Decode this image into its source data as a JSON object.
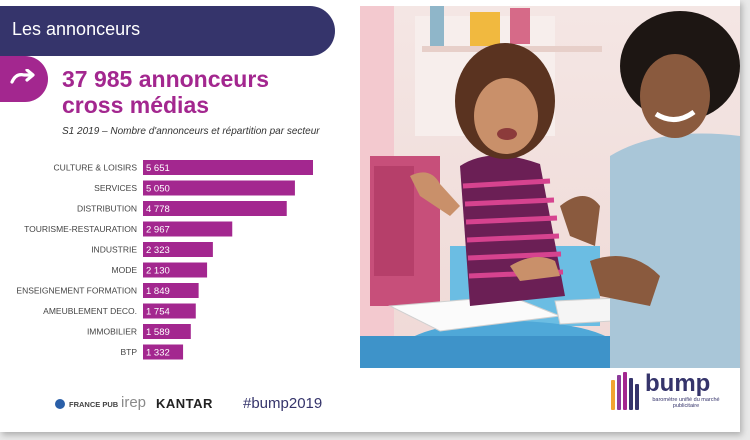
{
  "header": {
    "title": "Les annonceurs"
  },
  "headline": {
    "line1": "37 985 annonceurs",
    "line2": "cross médias"
  },
  "subtitle": "S1 2019 – Nombre d'annonceurs et répartition par secteur",
  "chart_data": {
    "type": "bar",
    "orientation": "horizontal",
    "categories": [
      "CULTURE & LOISIRS",
      "SERVICES",
      "DISTRIBUTION",
      "TOURISME-RESTAURATION",
      "INDUSTRIE",
      "MODE",
      "ENSEIGNEMENT FORMATION",
      "AMEUBLEMENT DECO.",
      "IMMOBILIER",
      "BTP"
    ],
    "values": [
      5651,
      5050,
      4778,
      2967,
      2323,
      2130,
      1849,
      1754,
      1589,
      1332
    ],
    "value_labels": [
      "5 651",
      "5 050",
      "4 778",
      "2 967",
      "2 323",
      "2 130",
      "1 849",
      "1 754",
      "1 589",
      "1 332"
    ],
    "bar_color": "#a3278f",
    "grid": false
  },
  "photo": {
    "icon": "mother-daughter-photo"
  },
  "footer": {
    "logo_francepub": "FRANCE PUB",
    "logo_irep": "irep",
    "logo_kantar": "KANTAR",
    "hashtag": "#bump2019"
  },
  "brand": {
    "name": "bump",
    "tagline": "baromètre unifié du marché publicitaire",
    "bar_colors": [
      "#f2a530",
      "#8c3b9b",
      "#a3278f",
      "#35346b",
      "#35346b"
    ]
  },
  "colors": {
    "navy": "#35346b",
    "accent": "#a3278f"
  }
}
